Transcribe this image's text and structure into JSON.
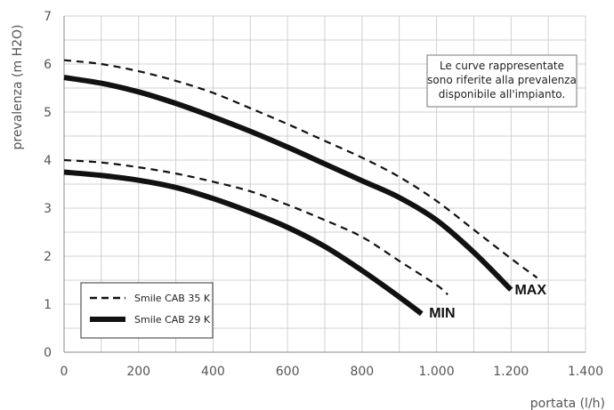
{
  "chart_data": {
    "type": "line",
    "xlabel": "portata (l/h)",
    "ylabel": "prevalenza (m H2O)",
    "xlim": [
      0,
      1400
    ],
    "ylim": [
      0,
      7
    ],
    "x_ticks": [
      "0",
      "200",
      "400",
      "600",
      "800",
      "1.000",
      "1.200",
      "1.400"
    ],
    "y_ticks": [
      "0",
      "1",
      "2",
      "3",
      "4",
      "5",
      "6",
      "7"
    ],
    "grid": true,
    "legend_position": "bottom-left",
    "annotation": [
      "Le curve rappresentate",
      "sono riferite alla prevalenza",
      "disponibile all'impianto."
    ],
    "series": [
      {
        "name": "Smile CAB 35 K",
        "style": "dashed",
        "curve": "MAX",
        "points": [
          [
            0,
            6.08
          ],
          [
            100,
            6.0
          ],
          [
            200,
            5.85
          ],
          [
            300,
            5.65
          ],
          [
            400,
            5.4
          ],
          [
            500,
            5.08
          ],
          [
            600,
            4.75
          ],
          [
            700,
            4.4
          ],
          [
            800,
            4.05
          ],
          [
            900,
            3.65
          ],
          [
            1000,
            3.15
          ],
          [
            1100,
            2.55
          ],
          [
            1200,
            1.95
          ],
          [
            1270,
            1.55
          ]
        ]
      },
      {
        "name": "Smile CAB 29 K",
        "style": "solid",
        "curve": "MAX",
        "points": [
          [
            0,
            5.72
          ],
          [
            100,
            5.6
          ],
          [
            200,
            5.42
          ],
          [
            300,
            5.18
          ],
          [
            400,
            4.9
          ],
          [
            500,
            4.6
          ],
          [
            600,
            4.27
          ],
          [
            700,
            3.92
          ],
          [
            800,
            3.57
          ],
          [
            900,
            3.22
          ],
          [
            1000,
            2.75
          ],
          [
            1100,
            2.08
          ],
          [
            1200,
            1.3
          ]
        ]
      },
      {
        "name": "Smile CAB 35 K",
        "style": "dashed",
        "curve": "MIN",
        "points": [
          [
            0,
            4.0
          ],
          [
            100,
            3.95
          ],
          [
            200,
            3.85
          ],
          [
            300,
            3.72
          ],
          [
            400,
            3.55
          ],
          [
            500,
            3.35
          ],
          [
            600,
            3.07
          ],
          [
            700,
            2.75
          ],
          [
            800,
            2.4
          ],
          [
            900,
            1.9
          ],
          [
            1000,
            1.4
          ],
          [
            1030,
            1.2
          ]
        ]
      },
      {
        "name": "Smile CAB 29 K",
        "style": "solid",
        "curve": "MIN",
        "points": [
          [
            0,
            3.75
          ],
          [
            100,
            3.68
          ],
          [
            200,
            3.58
          ],
          [
            300,
            3.43
          ],
          [
            400,
            3.2
          ],
          [
            500,
            2.92
          ],
          [
            600,
            2.6
          ],
          [
            700,
            2.2
          ],
          [
            800,
            1.7
          ],
          [
            900,
            1.15
          ],
          [
            960,
            0.8
          ]
        ]
      }
    ],
    "curve_labels": [
      {
        "text": "MAX",
        "x": 1210,
        "y": 1.2
      },
      {
        "text": "MIN",
        "x": 980,
        "y": 0.72
      }
    ],
    "legend": [
      {
        "label": "Smile CAB 35 K",
        "style": "dashed"
      },
      {
        "label": "Smile CAB 29 K",
        "style": "solid"
      }
    ]
  }
}
